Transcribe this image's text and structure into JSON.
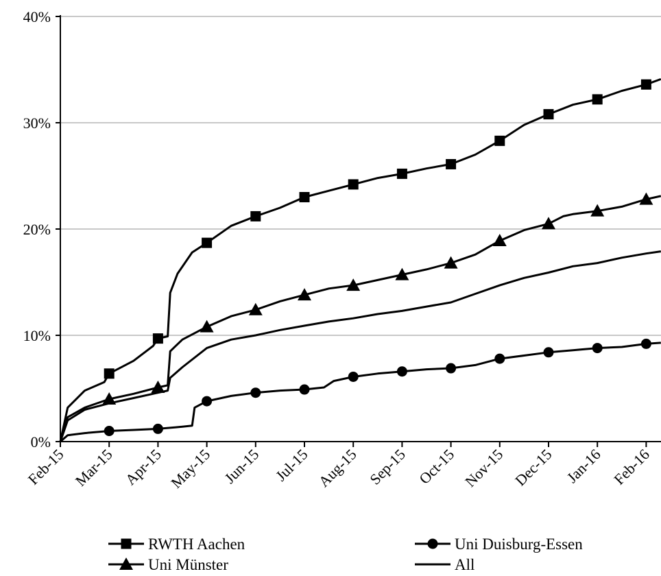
{
  "chart_data": {
    "type": "line",
    "title": "",
    "xlabel": "",
    "ylabel": "",
    "x_ticks": [
      "Feb-15",
      "Mar-15",
      "Apr-15",
      "May-15",
      "Jun-15",
      "Jul-15",
      "Aug-15",
      "Sep-15",
      "Oct-15",
      "Nov-15",
      "Dec-15",
      "Jan-16",
      "Feb-16"
    ],
    "y_ticks": [
      "0%",
      "10%",
      "20%",
      "30%",
      "40%"
    ],
    "ylim": [
      0,
      40
    ],
    "y_unit": "%",
    "grid": "horizontal",
    "legend_position": "bottom",
    "series": [
      {
        "name": "RWTH Aachen",
        "marker": "square",
        "color": "#000000",
        "points": [
          [
            0,
            0
          ],
          [
            0.15,
            3.2
          ],
          [
            0.5,
            4.8
          ],
          [
            0.9,
            5.6
          ],
          [
            1,
            6.4
          ],
          [
            1.5,
            7.6
          ],
          [
            1.9,
            9.0
          ],
          [
            2,
            9.7
          ],
          [
            2.2,
            9.9
          ],
          [
            2.25,
            14.0
          ],
          [
            2.4,
            15.8
          ],
          [
            2.7,
            17.8
          ],
          [
            3,
            18.7
          ],
          [
            3.5,
            20.3
          ],
          [
            4,
            21.2
          ],
          [
            4.5,
            22.0
          ],
          [
            5,
            23.0
          ],
          [
            5.5,
            23.6
          ],
          [
            6,
            24.2
          ],
          [
            6.5,
            24.8
          ],
          [
            7,
            25.2
          ],
          [
            7.5,
            25.7
          ],
          [
            8,
            26.1
          ],
          [
            8.5,
            27.0
          ],
          [
            9,
            28.3
          ],
          [
            9.5,
            29.8
          ],
          [
            10,
            30.8
          ],
          [
            10.5,
            31.7
          ],
          [
            11,
            32.2
          ],
          [
            11.5,
            33.0
          ],
          [
            12,
            33.6
          ],
          [
            12.3,
            34.1
          ]
        ]
      },
      {
        "name": "Uni Münster",
        "marker": "triangle",
        "color": "#000000",
        "points": [
          [
            0,
            0
          ],
          [
            0.15,
            2.3
          ],
          [
            0.5,
            3.2
          ],
          [
            1,
            4.0
          ],
          [
            1.5,
            4.5
          ],
          [
            2,
            5.1
          ],
          [
            2.2,
            5.3
          ],
          [
            2.25,
            8.5
          ],
          [
            2.5,
            9.6
          ],
          [
            3,
            10.8
          ],
          [
            3.5,
            11.8
          ],
          [
            4,
            12.4
          ],
          [
            4.5,
            13.2
          ],
          [
            5,
            13.8
          ],
          [
            5.5,
            14.4
          ],
          [
            6,
            14.7
          ],
          [
            6.5,
            15.2
          ],
          [
            7,
            15.7
          ],
          [
            7.5,
            16.2
          ],
          [
            8,
            16.8
          ],
          [
            8.5,
            17.6
          ],
          [
            9,
            18.9
          ],
          [
            9.5,
            19.9
          ],
          [
            10,
            20.5
          ],
          [
            10.3,
            21.2
          ],
          [
            10.5,
            21.4
          ],
          [
            11,
            21.7
          ],
          [
            11.5,
            22.1
          ],
          [
            12,
            22.8
          ],
          [
            12.3,
            23.1
          ]
        ]
      },
      {
        "name": "All",
        "marker": "none",
        "color": "#000000",
        "points": [
          [
            0,
            0
          ],
          [
            0.15,
            2.0
          ],
          [
            0.5,
            3.0
          ],
          [
            1,
            3.6
          ],
          [
            1.5,
            4.1
          ],
          [
            2,
            4.6
          ],
          [
            2.2,
            4.8
          ],
          [
            2.25,
            6.0
          ],
          [
            2.5,
            7.0
          ],
          [
            3,
            8.8
          ],
          [
            3.5,
            9.6
          ],
          [
            4,
            10.0
          ],
          [
            4.5,
            10.5
          ],
          [
            5,
            10.9
          ],
          [
            5.5,
            11.3
          ],
          [
            6,
            11.6
          ],
          [
            6.5,
            12.0
          ],
          [
            7,
            12.3
          ],
          [
            7.5,
            12.7
          ],
          [
            8,
            13.1
          ],
          [
            8.5,
            13.9
          ],
          [
            9,
            14.7
          ],
          [
            9.5,
            15.4
          ],
          [
            10,
            15.9
          ],
          [
            10.5,
            16.5
          ],
          [
            11,
            16.8
          ],
          [
            11.5,
            17.3
          ],
          [
            12,
            17.7
          ],
          [
            12.3,
            17.9
          ]
        ]
      },
      {
        "name": "Uni Duisburg-Essen",
        "marker": "circle",
        "color": "#000000",
        "points": [
          [
            0,
            0
          ],
          [
            0.15,
            0.6
          ],
          [
            0.5,
            0.8
          ],
          [
            1,
            1.0
          ],
          [
            1.5,
            1.1
          ],
          [
            2,
            1.2
          ],
          [
            2.5,
            1.4
          ],
          [
            2.7,
            1.5
          ],
          [
            2.75,
            3.2
          ],
          [
            3,
            3.8
          ],
          [
            3.5,
            4.3
          ],
          [
            4,
            4.6
          ],
          [
            4.5,
            4.8
          ],
          [
            5,
            4.9
          ],
          [
            5.4,
            5.1
          ],
          [
            5.6,
            5.7
          ],
          [
            6,
            6.1
          ],
          [
            6.5,
            6.4
          ],
          [
            7,
            6.6
          ],
          [
            7.5,
            6.8
          ],
          [
            8,
            6.9
          ],
          [
            8.5,
            7.2
          ],
          [
            9,
            7.8
          ],
          [
            9.5,
            8.1
          ],
          [
            10,
            8.4
          ],
          [
            10.5,
            8.6
          ],
          [
            11,
            8.8
          ],
          [
            11.5,
            8.9
          ],
          [
            12,
            9.2
          ],
          [
            12.3,
            9.3
          ]
        ]
      }
    ],
    "legend": [
      {
        "series": "RWTH Aachen",
        "column": 0,
        "row": 0
      },
      {
        "series": "Uni Duisburg-Essen",
        "column": 1,
        "row": 0
      },
      {
        "series": "Uni Münster",
        "column": 0,
        "row": 1
      },
      {
        "series": "All",
        "column": 1,
        "row": 1
      }
    ]
  }
}
